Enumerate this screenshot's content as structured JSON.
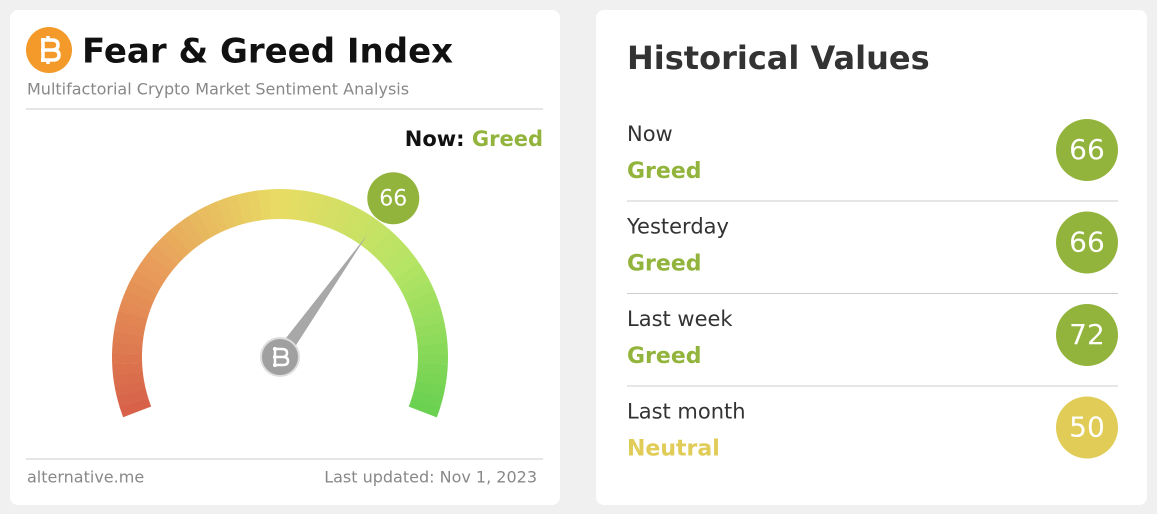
{
  "gauge_card": {
    "title": "Fear & Greed Index",
    "subtitle": "Multifactorial Crypto Market Sentiment Analysis",
    "now_label": "Now:",
    "now_classification": "Greed",
    "now_color": "#93b43c",
    "value": 66,
    "footer_left": "alternative.me",
    "footer_right": "Last updated: Nov 1, 2023"
  },
  "historical": {
    "title": "Historical Values",
    "rows": [
      {
        "label": "Now",
        "classification": "Greed",
        "value": 66,
        "color": "#93b43c"
      },
      {
        "label": "Yesterday",
        "classification": "Greed",
        "value": 66,
        "color": "#93b43c"
      },
      {
        "label": "Last week",
        "classification": "Greed",
        "value": 72,
        "color": "#93b43c"
      },
      {
        "label": "Last month",
        "classification": "Neutral",
        "value": 50,
        "color": "#e0cc56"
      }
    ]
  }
}
